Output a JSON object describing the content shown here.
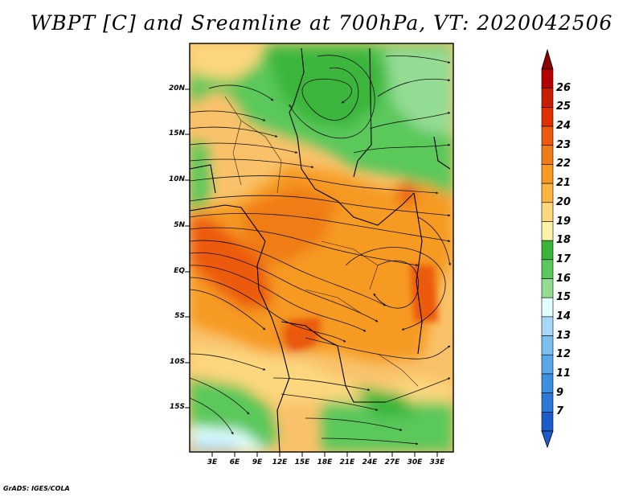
{
  "title": "WBPT [C] and Sreamline at 700hPa, VT: 2020042506",
  "footer": "GrADS: IGES/COLA",
  "lat_labels": [
    "20N",
    "15N",
    "10N",
    "5N",
    "EQ",
    "5S",
    "10S",
    "15S"
  ],
  "lon_labels": [
    "3E",
    "6E",
    "9E",
    "12E",
    "15E",
    "18E",
    "21E",
    "24E",
    "27E",
    "30E",
    "33E"
  ],
  "colorbar": {
    "levels": [
      "26",
      "25",
      "24",
      "23",
      "22",
      "21",
      "20",
      "19",
      "18",
      "17",
      "16",
      "15",
      "14",
      "13",
      "12",
      "11",
      "9",
      "7"
    ],
    "colors": [
      "#b40000",
      "#c81e00",
      "#e03000",
      "#ec5a10",
      "#f07c18",
      "#f69a22",
      "#fbb540",
      "#fcd77e",
      "#fcf2a8",
      "#3ab53a",
      "#5ac85a",
      "#94dc94",
      "#e1ffff",
      "#a8d8f8",
      "#7cc0f0",
      "#58a8ea",
      "#3c90e0",
      "#2c78d8",
      "#1c5cc8"
    ]
  },
  "colors": {
    "background": "#ffffff",
    "land_base": "#f5a030"
  }
}
